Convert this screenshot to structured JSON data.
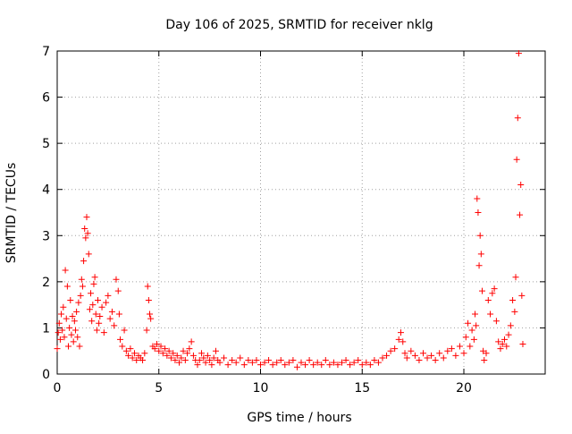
{
  "chart_data": {
    "type": "scatter",
    "title": "Day 106 of 2025, SRMTID for receiver nklg",
    "xlabel": "GPS time / hours",
    "ylabel": "SRMTID / TECUs",
    "xlim": [
      0,
      24
    ],
    "ylim": [
      0,
      7
    ],
    "xticks": [
      0,
      5,
      10,
      15,
      20
    ],
    "yticks": [
      0,
      1,
      2,
      3,
      4,
      5,
      6,
      7
    ],
    "grid": true,
    "marker": "+",
    "series": [
      {
        "name": "SRMTID",
        "color": "#ff0000",
        "points": [
          [
            0.0,
            0.55
          ],
          [
            0.05,
            0.9
          ],
          [
            0.1,
            1.1
          ],
          [
            0.15,
            0.75
          ],
          [
            0.2,
            1.3
          ],
          [
            0.25,
            0.95
          ],
          [
            0.3,
            1.45
          ],
          [
            0.35,
            0.8
          ],
          [
            0.4,
            2.25
          ],
          [
            0.45,
            1.2
          ],
          [
            0.5,
            1.9
          ],
          [
            0.55,
            0.6
          ],
          [
            0.6,
            1.0
          ],
          [
            0.65,
            1.6
          ],
          [
            0.7,
            0.85
          ],
          [
            0.75,
            1.25
          ],
          [
            0.8,
            0.7
          ],
          [
            0.85,
            1.15
          ],
          [
            0.9,
            0.95
          ],
          [
            0.95,
            1.35
          ],
          [
            1.0,
            0.8
          ],
          [
            1.05,
            1.55
          ],
          [
            1.1,
            0.6
          ],
          [
            1.15,
            1.7
          ],
          [
            1.2,
            2.05
          ],
          [
            1.25,
            1.9
          ],
          [
            1.3,
            2.45
          ],
          [
            1.35,
            3.15
          ],
          [
            1.4,
            2.95
          ],
          [
            1.45,
            3.4
          ],
          [
            1.5,
            3.05
          ],
          [
            1.55,
            2.6
          ],
          [
            1.6,
            1.4
          ],
          [
            1.65,
            1.75
          ],
          [
            1.7,
            1.15
          ],
          [
            1.75,
            1.5
          ],
          [
            1.8,
            1.95
          ],
          [
            1.85,
            2.1
          ],
          [
            1.9,
            1.3
          ],
          [
            1.95,
            0.95
          ],
          [
            2.0,
            1.6
          ],
          [
            2.05,
            1.1
          ],
          [
            2.1,
            1.25
          ],
          [
            2.2,
            1.45
          ],
          [
            2.3,
            0.9
          ],
          [
            2.4,
            1.55
          ],
          [
            2.5,
            1.7
          ],
          [
            2.6,
            1.2
          ],
          [
            2.7,
            1.35
          ],
          [
            2.8,
            1.05
          ],
          [
            2.9,
            2.05
          ],
          [
            3.0,
            1.8
          ],
          [
            3.05,
            1.3
          ],
          [
            3.1,
            0.75
          ],
          [
            3.2,
            0.6
          ],
          [
            3.3,
            0.95
          ],
          [
            3.4,
            0.5
          ],
          [
            3.5,
            0.4
          ],
          [
            3.6,
            0.55
          ],
          [
            3.7,
            0.35
          ],
          [
            3.8,
            0.45
          ],
          [
            3.9,
            0.3
          ],
          [
            4.0,
            0.4
          ],
          [
            4.1,
            0.35
          ],
          [
            4.2,
            0.3
          ],
          [
            4.3,
            0.45
          ],
          [
            4.4,
            0.95
          ],
          [
            4.45,
            1.9
          ],
          [
            4.5,
            1.6
          ],
          [
            4.55,
            1.3
          ],
          [
            4.6,
            1.2
          ],
          [
            4.7,
            0.6
          ],
          [
            4.8,
            0.55
          ],
          [
            4.9,
            0.65
          ],
          [
            5.0,
            0.5
          ],
          [
            5.1,
            0.6
          ],
          [
            5.2,
            0.45
          ],
          [
            5.3,
            0.55
          ],
          [
            5.4,
            0.4
          ],
          [
            5.5,
            0.5
          ],
          [
            5.6,
            0.35
          ],
          [
            5.7,
            0.45
          ],
          [
            5.8,
            0.3
          ],
          [
            5.9,
            0.4
          ],
          [
            6.0,
            0.25
          ],
          [
            6.1,
            0.35
          ],
          [
            6.2,
            0.5
          ],
          [
            6.3,
            0.3
          ],
          [
            6.4,
            0.45
          ],
          [
            6.5,
            0.55
          ],
          [
            6.6,
            0.7
          ],
          [
            6.7,
            0.4
          ],
          [
            6.8,
            0.3
          ],
          [
            6.9,
            0.2
          ],
          [
            7.0,
            0.3
          ],
          [
            7.1,
            0.45
          ],
          [
            7.2,
            0.35
          ],
          [
            7.3,
            0.25
          ],
          [
            7.4,
            0.4
          ],
          [
            7.5,
            0.3
          ],
          [
            7.6,
            0.2
          ],
          [
            7.7,
            0.35
          ],
          [
            7.8,
            0.5
          ],
          [
            7.9,
            0.3
          ],
          [
            8.0,
            0.25
          ],
          [
            8.2,
            0.35
          ],
          [
            8.4,
            0.2
          ],
          [
            8.6,
            0.3
          ],
          [
            8.8,
            0.25
          ],
          [
            9.0,
            0.35
          ],
          [
            9.2,
            0.2
          ],
          [
            9.4,
            0.3
          ],
          [
            9.6,
            0.25
          ],
          [
            9.8,
            0.3
          ],
          [
            10.0,
            0.2
          ],
          [
            10.2,
            0.25
          ],
          [
            10.4,
            0.3
          ],
          [
            10.6,
            0.2
          ],
          [
            10.8,
            0.25
          ],
          [
            11.0,
            0.3
          ],
          [
            11.2,
            0.2
          ],
          [
            11.4,
            0.25
          ],
          [
            11.6,
            0.3
          ],
          [
            11.8,
            0.15
          ],
          [
            12.0,
            0.25
          ],
          [
            12.2,
            0.2
          ],
          [
            12.4,
            0.3
          ],
          [
            12.6,
            0.2
          ],
          [
            12.8,
            0.25
          ],
          [
            13.0,
            0.2
          ],
          [
            13.2,
            0.3
          ],
          [
            13.4,
            0.2
          ],
          [
            13.6,
            0.25
          ],
          [
            13.8,
            0.2
          ],
          [
            14.0,
            0.25
          ],
          [
            14.2,
            0.3
          ],
          [
            14.4,
            0.2
          ],
          [
            14.6,
            0.25
          ],
          [
            14.8,
            0.3
          ],
          [
            15.0,
            0.2
          ],
          [
            15.2,
            0.25
          ],
          [
            15.4,
            0.2
          ],
          [
            15.6,
            0.3
          ],
          [
            15.8,
            0.25
          ],
          [
            16.0,
            0.35
          ],
          [
            16.2,
            0.4
          ],
          [
            16.4,
            0.5
          ],
          [
            16.6,
            0.55
          ],
          [
            16.8,
            0.75
          ],
          [
            16.9,
            0.9
          ],
          [
            17.0,
            0.7
          ],
          [
            17.1,
            0.45
          ],
          [
            17.2,
            0.35
          ],
          [
            17.4,
            0.5
          ],
          [
            17.6,
            0.4
          ],
          [
            17.8,
            0.3
          ],
          [
            18.0,
            0.45
          ],
          [
            18.2,
            0.35
          ],
          [
            18.4,
            0.4
          ],
          [
            18.6,
            0.3
          ],
          [
            18.8,
            0.45
          ],
          [
            19.0,
            0.35
          ],
          [
            19.2,
            0.5
          ],
          [
            19.4,
            0.55
          ],
          [
            19.6,
            0.4
          ],
          [
            19.8,
            0.6
          ],
          [
            20.0,
            0.45
          ],
          [
            20.1,
            0.8
          ],
          [
            20.2,
            1.1
          ],
          [
            20.3,
            0.6
          ],
          [
            20.4,
            0.95
          ],
          [
            20.5,
            0.75
          ],
          [
            20.55,
            1.3
          ],
          [
            20.6,
            1.05
          ],
          [
            20.65,
            3.8
          ],
          [
            20.7,
            3.5
          ],
          [
            20.75,
            2.35
          ],
          [
            20.8,
            3.0
          ],
          [
            20.85,
            2.6
          ],
          [
            20.9,
            1.8
          ],
          [
            20.95,
            0.5
          ],
          [
            21.0,
            0.3
          ],
          [
            21.1,
            0.45
          ],
          [
            21.2,
            1.6
          ],
          [
            21.3,
            1.3
          ],
          [
            21.4,
            1.75
          ],
          [
            21.5,
            1.85
          ],
          [
            21.6,
            1.15
          ],
          [
            21.7,
            0.7
          ],
          [
            21.8,
            0.55
          ],
          [
            21.9,
            0.65
          ],
          [
            22.0,
            0.75
          ],
          [
            22.1,
            0.6
          ],
          [
            22.2,
            0.85
          ],
          [
            22.3,
            1.05
          ],
          [
            22.4,
            1.6
          ],
          [
            22.5,
            1.35
          ],
          [
            22.55,
            2.1
          ],
          [
            22.6,
            4.65
          ],
          [
            22.65,
            5.55
          ],
          [
            22.7,
            6.95
          ],
          [
            22.75,
            3.45
          ],
          [
            22.8,
            4.1
          ],
          [
            22.85,
            1.7
          ],
          [
            22.9,
            0.65
          ]
        ]
      }
    ]
  }
}
